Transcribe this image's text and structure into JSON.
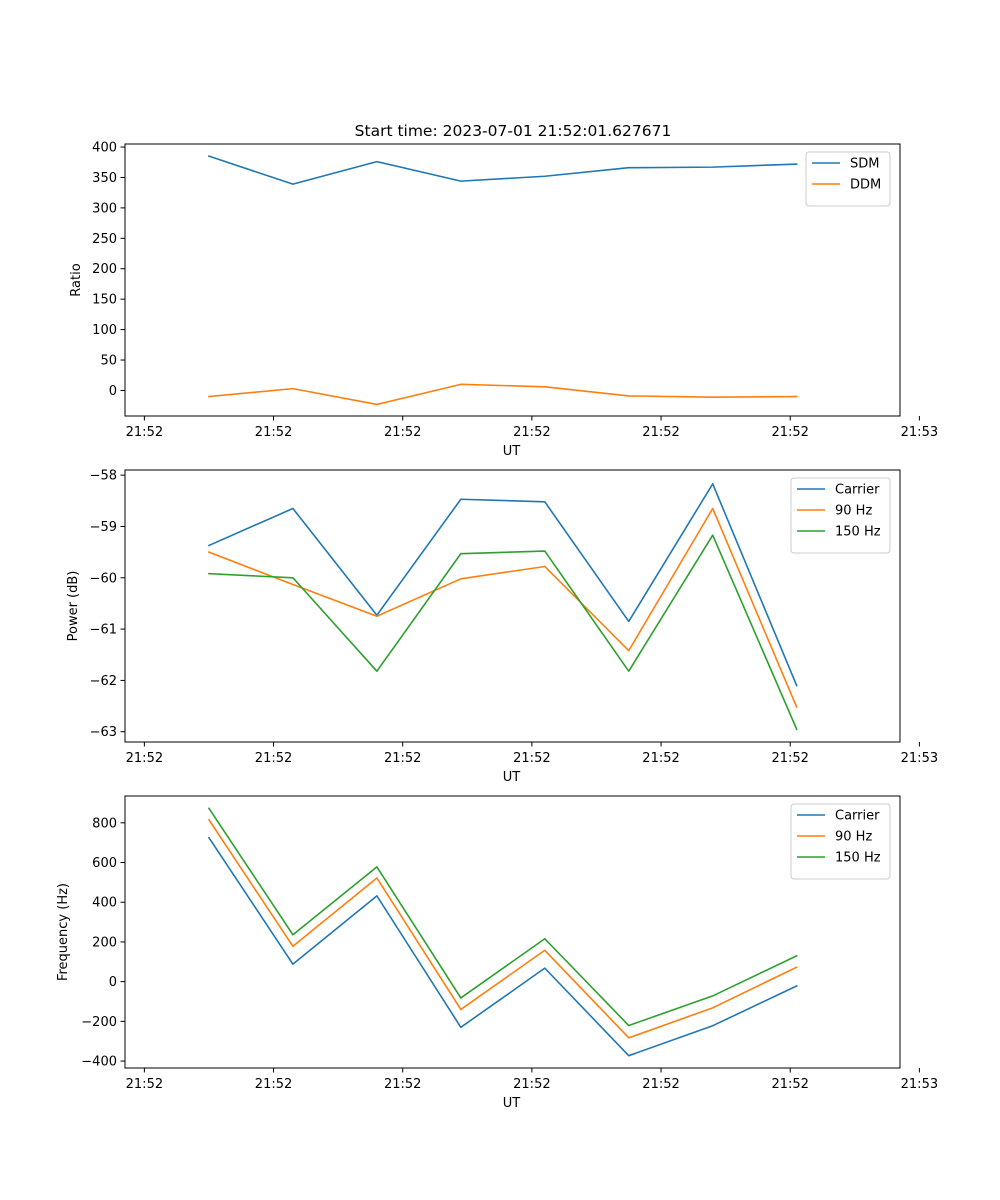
{
  "figure_title": "Start time: 2023-07-01 21:52:01.627671",
  "colors": {
    "blue": "#1f77b4",
    "orange": "#ff7f0e",
    "green": "#2ca02c"
  },
  "chart_data": [
    {
      "type": "line",
      "title": "Start time: 2023-07-01 21:52:01.627671",
      "xlabel": "UT",
      "ylabel": "Ratio",
      "x_tick_labels": [
        "21:52",
        "21:52",
        "21:52",
        "21:52",
        "21:52",
        "21:52",
        "21:53"
      ],
      "x": [
        0.5,
        1.15,
        1.8,
        2.45,
        3.1,
        3.75,
        4.4,
        5.05
      ],
      "xlim": [
        -0.15,
        5.85
      ],
      "ylim": [
        -42,
        405
      ],
      "yticks": [
        0,
        50,
        100,
        150,
        200,
        250,
        300,
        350,
        400
      ],
      "legend": "top-right",
      "series": [
        {
          "name": "SDM",
          "color": "#1f77b4",
          "values": [
            385,
            339,
            376,
            344,
            352,
            366,
            367,
            372
          ]
        },
        {
          "name": "DDM",
          "color": "#ff7f0e",
          "values": [
            -10,
            3,
            -23,
            10,
            6,
            -9,
            -11,
            -10
          ]
        }
      ]
    },
    {
      "type": "line",
      "xlabel": "UT",
      "ylabel": "Power (dB)",
      "x_tick_labels": [
        "21:52",
        "21:52",
        "21:52",
        "21:52",
        "21:52",
        "21:52",
        "21:53"
      ],
      "x": [
        0.5,
        1.15,
        1.8,
        2.45,
        3.1,
        3.75,
        4.4,
        5.05
      ],
      "xlim": [
        -0.15,
        5.85
      ],
      "ylim": [
        -63.2,
        -57.9
      ],
      "yticks": [
        -63,
        -62,
        -61,
        -60,
        -59,
        -58
      ],
      "legend": "top-right",
      "series": [
        {
          "name": "Carrier",
          "color": "#1f77b4",
          "values": [
            -59.37,
            -58.65,
            -60.73,
            -58.47,
            -58.52,
            -60.85,
            -58.17,
            -62.1
          ]
        },
        {
          "name": "90 Hz",
          "color": "#ff7f0e",
          "values": [
            -59.5,
            -60.13,
            -60.75,
            -60.02,
            -59.78,
            -61.42,
            -58.65,
            -62.52
          ]
        },
        {
          "name": "150 Hz",
          "color": "#2ca02c",
          "values": [
            -59.92,
            -60.0,
            -61.82,
            -59.53,
            -59.48,
            -61.82,
            -59.17,
            -62.95
          ]
        }
      ]
    },
    {
      "type": "line",
      "xlabel": "UT",
      "ylabel": "Frequency (Hz)",
      "x_tick_labels": [
        "21:52",
        "21:52",
        "21:52",
        "21:52",
        "21:52",
        "21:52",
        "21:53"
      ],
      "x": [
        0.5,
        1.15,
        1.8,
        2.45,
        3.1,
        3.75,
        4.4,
        5.05
      ],
      "xlim": [
        -0.15,
        5.85
      ],
      "ylim": [
        -435,
        935
      ],
      "yticks": [
        -400,
        -200,
        0,
        200,
        400,
        600,
        800
      ],
      "legend": "top-right",
      "series": [
        {
          "name": "Carrier",
          "color": "#1f77b4",
          "values": [
            725,
            88,
            432,
            -230,
            68,
            -373,
            -222,
            -22
          ]
        },
        {
          "name": "90 Hz",
          "color": "#ff7f0e",
          "values": [
            815,
            178,
            522,
            -140,
            158,
            -283,
            -132,
            73
          ]
        },
        {
          "name": "150 Hz",
          "color": "#2ca02c",
          "values": [
            873,
            236,
            578,
            -82,
            216,
            -221,
            -72,
            130
          ]
        }
      ]
    }
  ]
}
